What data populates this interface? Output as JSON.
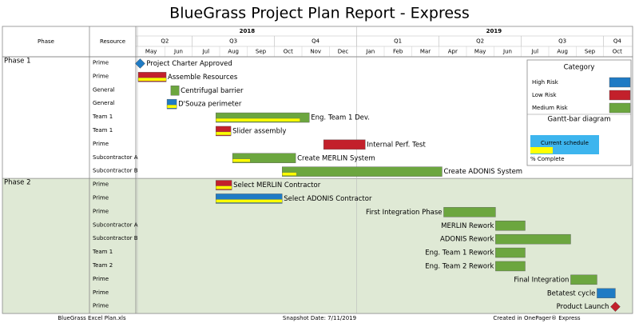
{
  "chart_data": {
    "type": "gantt",
    "title": "BlueGrass Project Plan Report - Express",
    "column_headers": [
      "Phase",
      "Resource"
    ],
    "xlim": [
      0,
      18
    ],
    "years": [
      {
        "label": "2018",
        "span": [
          0,
          8
        ]
      },
      {
        "label": "2019",
        "span": [
          8,
          18
        ]
      }
    ],
    "quarters": [
      {
        "label": "Q2",
        "span": [
          0,
          2
        ]
      },
      {
        "label": "Q3",
        "span": [
          2,
          5
        ]
      },
      {
        "label": "Q4",
        "span": [
          5,
          8
        ]
      },
      {
        "label": "Q1",
        "span": [
          8,
          11
        ]
      },
      {
        "label": "Q2",
        "span": [
          11,
          14
        ]
      },
      {
        "label": "Q3",
        "span": [
          14,
          17
        ]
      },
      {
        "label": "Q4",
        "span": [
          17,
          18
        ]
      }
    ],
    "months": [
      "May",
      "Jun",
      "Jul",
      "Aug",
      "Sep",
      "Oct",
      "Nov",
      "Dec",
      "Jan",
      "Feb",
      "Mar",
      "Apr",
      "May",
      "Jun",
      "Jul",
      "Aug",
      "Sep",
      "Oct"
    ],
    "phase_colors": [
      "#ffffff",
      "#dfe9d5"
    ],
    "progress_color": "#ffff00",
    "tasks": [
      {
        "phase": "Phase 1",
        "resource": "Prime",
        "name": "Project Charter Approved",
        "kind": "milestone",
        "start": 0.1,
        "color": "#1f7bc4"
      },
      {
        "resource": "Prime",
        "name": "Assemble Resources",
        "start": 0.03,
        "end": 1.05,
        "color": "#c3202b",
        "percent_complete": 100
      },
      {
        "resource": "General",
        "name": "Centrifugal barrier",
        "start": 1.22,
        "end": 1.52,
        "color": "#6ca63f",
        "percent_complete": 0
      },
      {
        "resource": "General",
        "name": "D'Souza perimeter",
        "start": 1.08,
        "end": 1.43,
        "color": "#1f7bc4",
        "percent_complete": 100
      },
      {
        "resource": "Team 1",
        "name": "Eng. Team 1 Dev.",
        "start": 2.86,
        "end": 6.27,
        "color": "#6ca63f",
        "percent_complete": 90
      },
      {
        "resource": "Team 1",
        "name": "Slider assembly",
        "start": 2.86,
        "end": 3.41,
        "color": "#c3202b",
        "percent_complete": 100
      },
      {
        "resource": "Prime",
        "name": "Internal Perf. Test",
        "start": 6.79,
        "end": 8.31,
        "color": "#c3202b",
        "percent_complete": 0
      },
      {
        "resource": "Subcontractor A",
        "name": "Create MERLIN System",
        "start": 3.47,
        "end": 5.77,
        "color": "#6ca63f",
        "percent_complete": 28
      },
      {
        "resource": "Subcontractor B",
        "name": "Create ADONIS System",
        "start": 5.28,
        "end": 11.11,
        "color": "#6ca63f",
        "percent_complete": 9
      },
      {
        "phase": "Phase 2",
        "resource": "Prime",
        "name": "Select MERLIN Contractor",
        "start": 2.86,
        "end": 3.44,
        "color": "#c3202b",
        "percent_complete": 100
      },
      {
        "resource": "Prime",
        "name": "Select ADONIS Contractor",
        "start": 2.86,
        "end": 5.28,
        "color": "#1f7bc4",
        "percent_complete": 100
      },
      {
        "resource": "Prime",
        "name": "First Integration Phase",
        "label_position": "left",
        "start": 11.17,
        "end": 13.06,
        "color": "#6ca63f",
        "percent_complete": 0
      },
      {
        "resource": "Subcontractor A",
        "name": "MERLIN Rework",
        "label_position": "left",
        "start": 13.06,
        "end": 14.14,
        "color": "#6ca63f",
        "percent_complete": 0
      },
      {
        "resource": "Subcontractor B",
        "name": "ADONIS Rework",
        "label_position": "left",
        "start": 13.06,
        "end": 15.8,
        "color": "#6ca63f",
        "percent_complete": 0
      },
      {
        "resource": "Team 1",
        "name": "Eng. Team 1 Rework",
        "label_position": "left",
        "start": 13.06,
        "end": 14.14,
        "color": "#6ca63f",
        "percent_complete": 0
      },
      {
        "resource": "Team 2",
        "name": "Eng. Team 2 Rework",
        "label_position": "left",
        "start": 13.06,
        "end": 14.14,
        "color": "#6ca63f",
        "percent_complete": 0
      },
      {
        "resource": "Prime",
        "name": "Final Integration",
        "label_position": "left",
        "start": 15.8,
        "end": 16.76,
        "color": "#6ca63f",
        "percent_complete": 0
      },
      {
        "resource": "Prime",
        "name": "Betatest cycle",
        "label_position": "left",
        "start": 16.76,
        "end": 17.43,
        "color": "#1f7bc4",
        "percent_complete": 0
      },
      {
        "resource": "Prime",
        "name": "Product Launch",
        "label_position": "left",
        "kind": "milestone",
        "start": 17.43,
        "color": "#c3202b"
      }
    ],
    "legend": {
      "title": "Category",
      "items": [
        {
          "name": "High Risk",
          "color": "#1f7bc4"
        },
        {
          "name": "Low Risk",
          "color": "#c3202b"
        },
        {
          "name": "Medium Risk",
          "color": "#6ca63f"
        }
      ],
      "bar_title": "Gantt-bar diagram",
      "schedule_label": "Current schedule",
      "schedule_color": "#3db5ee",
      "complete_label": "% Complete"
    },
    "footer": [
      "BlueGrass Excel Plan.xls",
      "Snapshot Date: 7/11/2019",
      "Created in OnePager® Express"
    ]
  }
}
